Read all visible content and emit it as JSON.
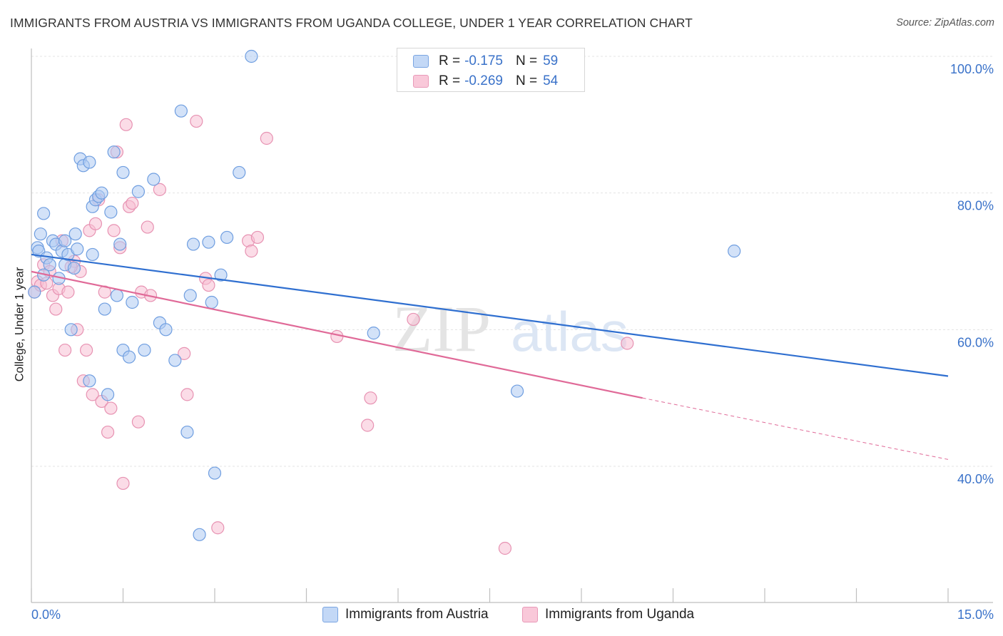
{
  "title": "IMMIGRANTS FROM AUSTRIA VS IMMIGRANTS FROM UGANDA COLLEGE, UNDER 1 YEAR CORRELATION CHART",
  "source": "Source: ZipAtlas.com",
  "watermark": {
    "zip": "ZIP",
    "atlas": "atlas"
  },
  "legend_top": [
    {
      "r_label": "R =",
      "r_value": "-0.175",
      "n_label": "N =",
      "n_value": "59"
    },
    {
      "r_label": "R =",
      "r_value": "-0.269",
      "n_label": "N =",
      "n_value": "54"
    }
  ],
  "legend_bottom": [
    "Immigrants from Austria",
    "Immigrants from Uganda"
  ],
  "x_min_label": "0.0%",
  "x_max_label": "15.0%",
  "colors": {
    "austria_fill": "#aecbf3",
    "austria_stroke": "#6f9ee0",
    "austria_line": "#2f6fd0",
    "uganda_fill": "#f8bfd3",
    "uganda_stroke": "#e792b2",
    "uganda_line": "#e06a98",
    "tick_text": "#3a72c9",
    "grid": "#e3e3e3",
    "axis": "#bfbfbf"
  },
  "chart_data": {
    "type": "scatter",
    "title": "IMMIGRANTS FROM AUSTRIA VS IMMIGRANTS FROM UGANDA COLLEGE, UNDER 1 YEAR CORRELATION CHART",
    "xlabel": "",
    "ylabel": "College, Under 1 year",
    "xlim": [
      0,
      15
    ],
    "ylim": [
      20,
      102
    ],
    "y_ticks": [
      40,
      60,
      80,
      100
    ],
    "y_tick_labels": [
      "40.0%",
      "60.0%",
      "80.0%",
      "100.0%"
    ],
    "series": [
      {
        "name": "Immigrants from Austria",
        "r": -0.175,
        "n": 59,
        "trend": {
          "x": [
            0,
            15
          ],
          "y": [
            71.0,
            53.2
          ]
        },
        "points": [
          [
            0.05,
            65.5
          ],
          [
            0.1,
            72.0
          ],
          [
            0.12,
            71.5
          ],
          [
            0.15,
            74.0
          ],
          [
            0.2,
            77.0
          ],
          [
            0.25,
            70.5
          ],
          [
            0.3,
            69.5
          ],
          [
            0.35,
            73.0
          ],
          [
            0.4,
            72.5
          ],
          [
            0.45,
            67.5
          ],
          [
            0.5,
            71.5
          ],
          [
            0.55,
            69.5
          ],
          [
            0.6,
            71.0
          ],
          [
            0.65,
            60.0
          ],
          [
            0.7,
            69.0
          ],
          [
            0.72,
            74.0
          ],
          [
            0.8,
            85.0
          ],
          [
            0.85,
            84.0
          ],
          [
            0.95,
            84.5
          ],
          [
            0.95,
            52.5
          ],
          [
            1.0,
            71.0
          ],
          [
            1.0,
            78.0
          ],
          [
            1.05,
            79.0
          ],
          [
            1.1,
            79.5
          ],
          [
            1.15,
            80.0
          ],
          [
            1.2,
            63.0
          ],
          [
            1.25,
            50.5
          ],
          [
            1.35,
            86.0
          ],
          [
            1.4,
            65.0
          ],
          [
            1.45,
            72.5
          ],
          [
            1.5,
            83.0
          ],
          [
            1.5,
            57.0
          ],
          [
            1.6,
            56.0
          ],
          [
            1.65,
            64.0
          ],
          [
            1.85,
            57.0
          ],
          [
            2.0,
            82.0
          ],
          [
            2.1,
            61.0
          ],
          [
            2.2,
            60.0
          ],
          [
            2.35,
            55.5
          ],
          [
            2.45,
            92.0
          ],
          [
            2.55,
            45.0
          ],
          [
            2.6,
            65.0
          ],
          [
            2.65,
            72.5
          ],
          [
            2.75,
            30.0
          ],
          [
            2.95,
            64.0
          ],
          [
            3.0,
            39.0
          ],
          [
            3.1,
            68.0
          ],
          [
            3.2,
            73.5
          ],
          [
            3.4,
            83.0
          ],
          [
            3.6,
            100.0
          ],
          [
            5.6,
            59.5
          ],
          [
            7.95,
            51.0
          ],
          [
            11.5,
            71.5
          ],
          [
            0.2,
            68.0
          ],
          [
            0.55,
            73.0
          ],
          [
            0.75,
            71.8
          ],
          [
            1.75,
            80.2
          ],
          [
            2.9,
            72.8
          ],
          [
            1.3,
            77.2
          ]
        ]
      },
      {
        "name": "Immigrants from Uganda",
        "r": -0.269,
        "n": 54,
        "trend": {
          "x": [
            0,
            10.0
          ],
          "y": [
            68.5,
            50.0
          ]
        },
        "trend_dashed": {
          "x": [
            10.0,
            15
          ],
          "y": [
            50.0,
            41.0
          ]
        },
        "points": [
          [
            0.05,
            65.5
          ],
          [
            0.1,
            67.0
          ],
          [
            0.15,
            66.5
          ],
          [
            0.2,
            69.5
          ],
          [
            0.3,
            68.5
          ],
          [
            0.35,
            65.0
          ],
          [
            0.4,
            63.0
          ],
          [
            0.45,
            66.0
          ],
          [
            0.5,
            73.0
          ],
          [
            0.55,
            57.0
          ],
          [
            0.6,
            65.5
          ],
          [
            0.7,
            70.0
          ],
          [
            0.75,
            60.0
          ],
          [
            0.8,
            68.5
          ],
          [
            0.85,
            52.5
          ],
          [
            0.9,
            57.0
          ],
          [
            0.95,
            74.5
          ],
          [
            1.0,
            50.5
          ],
          [
            1.05,
            75.5
          ],
          [
            1.1,
            79.0
          ],
          [
            1.15,
            49.5
          ],
          [
            1.2,
            65.5
          ],
          [
            1.25,
            45.0
          ],
          [
            1.3,
            48.5
          ],
          [
            1.35,
            74.5
          ],
          [
            1.4,
            86.0
          ],
          [
            1.45,
            72.0
          ],
          [
            1.5,
            37.5
          ],
          [
            1.55,
            90.0
          ],
          [
            1.6,
            78.0
          ],
          [
            1.65,
            78.5
          ],
          [
            1.75,
            46.5
          ],
          [
            1.8,
            65.5
          ],
          [
            1.9,
            75.0
          ],
          [
            2.1,
            80.5
          ],
          [
            2.5,
            56.5
          ],
          [
            2.55,
            50.5
          ],
          [
            2.7,
            90.5
          ],
          [
            2.85,
            67.5
          ],
          [
            2.9,
            66.5
          ],
          [
            3.05,
            31.0
          ],
          [
            3.55,
            73.0
          ],
          [
            3.6,
            71.5
          ],
          [
            3.7,
            73.5
          ],
          [
            3.85,
            88.0
          ],
          [
            5.0,
            59.0
          ],
          [
            5.5,
            46.0
          ],
          [
            5.55,
            50.0
          ],
          [
            6.25,
            61.5
          ],
          [
            7.75,
            28.0
          ],
          [
            9.75,
            58.0
          ],
          [
            0.25,
            66.8
          ],
          [
            0.65,
            69.2
          ],
          [
            1.95,
            65.0
          ]
        ]
      }
    ]
  }
}
